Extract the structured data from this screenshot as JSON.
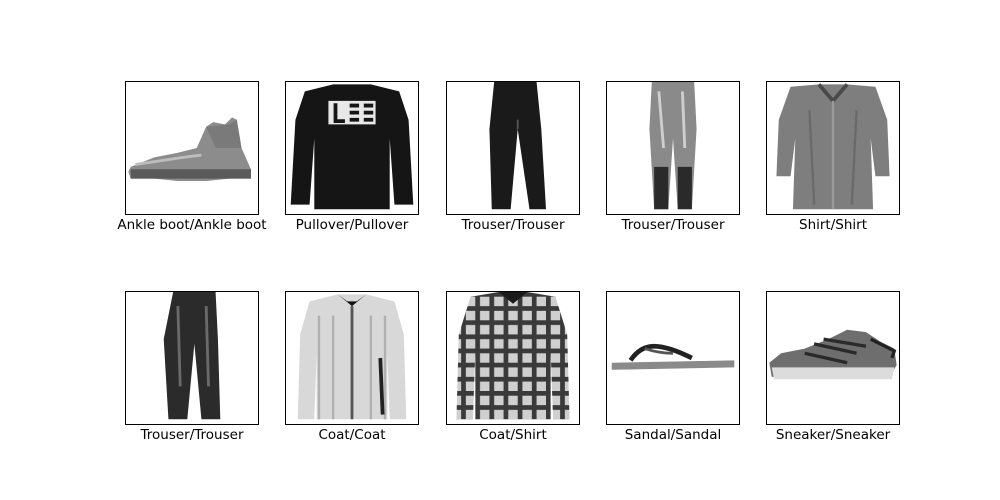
{
  "figure": {
    "panels": [
      {
        "caption": "Ankle boot/Ankle boot",
        "image": "ankle-boot"
      },
      {
        "caption": "Pullover/Pullover",
        "image": "pullover"
      },
      {
        "caption": "Trouser/Trouser",
        "image": "trouser"
      },
      {
        "caption": "Trouser/Trouser",
        "image": "trouser-light"
      },
      {
        "caption": "Shirt/Shirt",
        "image": "shirt"
      },
      {
        "caption": "Trouser/Trouser",
        "image": "trouser-dark"
      },
      {
        "caption": "Coat/Coat",
        "image": "coat"
      },
      {
        "caption": "Coat/Shirt",
        "image": "plaid-shirt"
      },
      {
        "caption": "Sandal/Sandal",
        "image": "sandal"
      },
      {
        "caption": "Sneaker/Sneaker",
        "image": "sneaker"
      }
    ]
  }
}
